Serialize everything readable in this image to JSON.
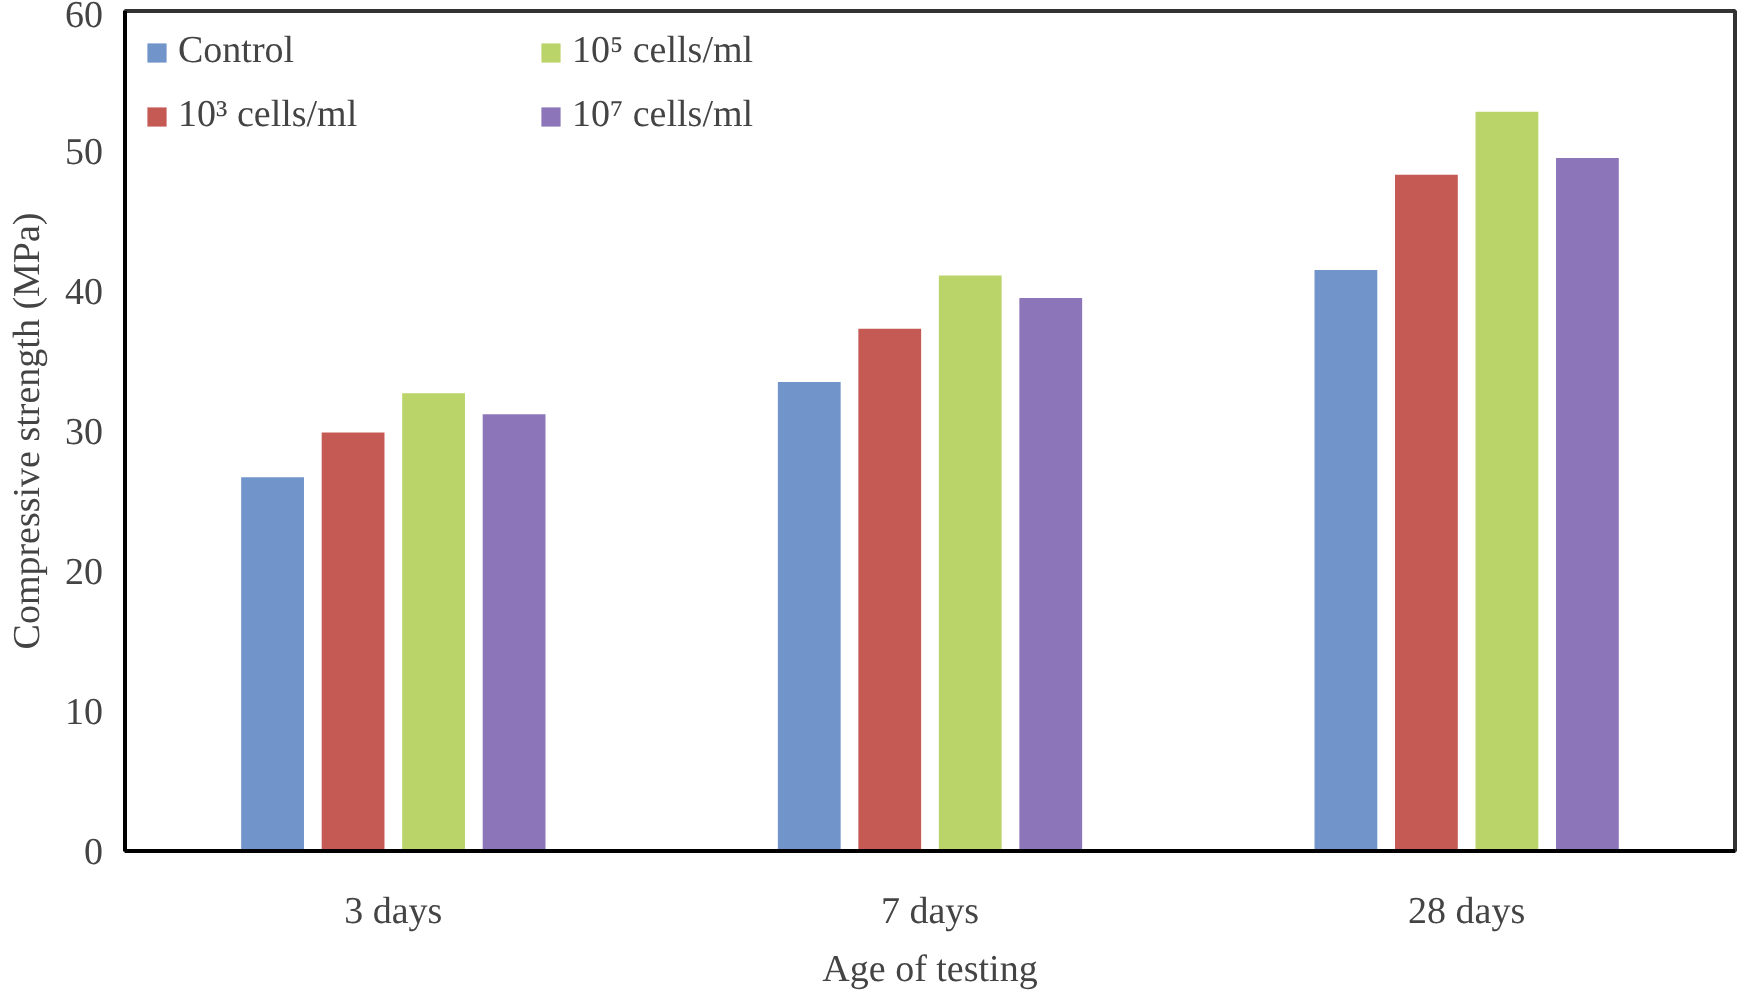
{
  "chart_data": {
    "type": "bar",
    "xlabel": "Age of testing",
    "ylabel": "Compressive strength (MPa)",
    "categories": [
      "3 days",
      "7 days",
      "28 days"
    ],
    "series": [
      {
        "name": "Control",
        "color": "#7194cb",
        "values": [
          26.7,
          33.5,
          41.5
        ]
      },
      {
        "name": "10³ cells/ml",
        "color": "#c55a55",
        "values": [
          29.9,
          37.3,
          48.3
        ]
      },
      {
        "name": "10⁵ cells/ml",
        "color": "#bad46a",
        "values": [
          32.7,
          41.1,
          52.8
        ]
      },
      {
        "name": "10⁷ cells/ml",
        "color": "#8c76b9",
        "values": [
          31.2,
          39.5,
          49.5
        ]
      }
    ],
    "ylim": [
      0,
      60
    ],
    "yticks": [
      0,
      10,
      20,
      30,
      40,
      50,
      60
    ],
    "grid": false,
    "legend": "top left"
  }
}
